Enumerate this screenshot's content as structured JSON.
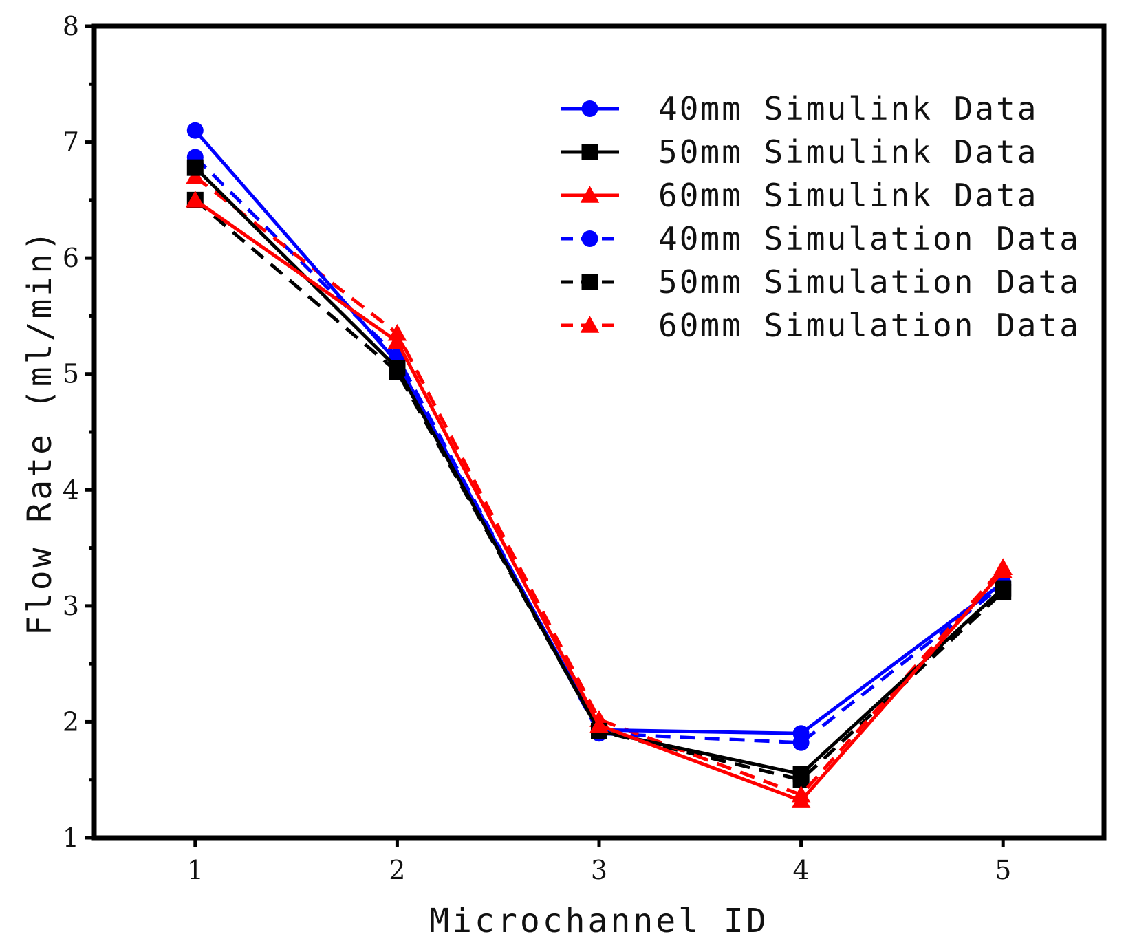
{
  "chart_data": {
    "type": "line",
    "title": "",
    "xlabel": "Microchannel ID",
    "ylabel": "Flow Rate (ml/min)",
    "x": [
      1,
      2,
      3,
      4,
      5
    ],
    "x_tick_labels": [
      "1",
      "2",
      "3",
      "4",
      "5"
    ],
    "xlim": [
      0.5,
      5.5
    ],
    "ylim": [
      1,
      8
    ],
    "y_ticks": [
      1,
      2,
      3,
      4,
      5,
      6,
      7,
      8
    ],
    "y_tick_labels": [
      "1",
      "2",
      "3",
      "4",
      "5",
      "6",
      "7",
      "8"
    ],
    "grid": false,
    "legend_position": "top-right",
    "series": [
      {
        "name": "40mm Simulink Data",
        "color": "#0000ff",
        "style": "solid",
        "marker": "circle",
        "values": [
          7.1,
          5.1,
          1.93,
          1.9,
          3.2
        ]
      },
      {
        "name": "50mm Simulink Data",
        "color": "#000000",
        "style": "solid",
        "marker": "square",
        "values": [
          6.78,
          5.05,
          1.92,
          1.55,
          3.15
        ]
      },
      {
        "name": "60mm Simulink Data",
        "color": "#ff0000",
        "style": "solid",
        "marker": "triangle",
        "values": [
          6.5,
          5.28,
          1.97,
          1.32,
          3.3
        ]
      },
      {
        "name": "40mm Simulation Data",
        "color": "#0000ff",
        "style": "dashed",
        "marker": "circle",
        "values": [
          6.87,
          5.15,
          1.9,
          1.82,
          3.18
        ]
      },
      {
        "name": "50mm Simulation Data",
        "color": "#000000",
        "style": "dashed",
        "marker": "square",
        "values": [
          6.5,
          5.02,
          1.92,
          1.5,
          3.12
        ]
      },
      {
        "name": "60mm Simulation Data",
        "color": "#ff0000",
        "style": "dashed",
        "marker": "triangle",
        "values": [
          6.7,
          5.35,
          2.02,
          1.37,
          3.33
        ]
      }
    ]
  }
}
